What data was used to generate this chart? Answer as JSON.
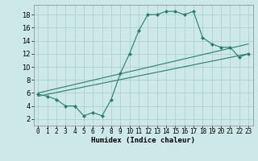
{
  "curve_x": [
    0,
    1,
    2,
    3,
    4,
    5,
    6,
    7,
    8,
    9,
    10,
    11,
    12,
    13,
    14,
    15,
    16,
    17,
    18,
    19,
    20,
    21,
    22,
    23
  ],
  "curve_y": [
    5.8,
    5.5,
    5.0,
    4.0,
    4.0,
    2.5,
    3.0,
    2.5,
    5.0,
    9.0,
    12.0,
    15.5,
    18.0,
    18.0,
    18.5,
    18.5,
    18.0,
    18.5,
    14.5,
    13.5,
    13.0,
    13.0,
    11.5,
    12.0
  ],
  "line1_x": [
    0,
    23
  ],
  "line1_y": [
    6.0,
    13.5
  ],
  "line2_x": [
    0,
    23
  ],
  "line2_y": [
    5.5,
    12.0
  ],
  "color": "#2a7d6e",
  "bg_color": "#cce8e8",
  "grid_color": "#aacccc",
  "xlim": [
    -0.5,
    23.5
  ],
  "ylim": [
    1.0,
    19.5
  ],
  "xlabel": "Humidex (Indice chaleur)",
  "xticks": [
    0,
    1,
    2,
    3,
    4,
    5,
    6,
    7,
    8,
    9,
    10,
    11,
    12,
    13,
    14,
    15,
    16,
    17,
    18,
    19,
    20,
    21,
    22,
    23
  ],
  "yticks": [
    2,
    4,
    6,
    8,
    10,
    12,
    14,
    16,
    18
  ],
  "xlabel_fontsize": 6.5,
  "tick_fontsize": 5.5,
  "ylabel_tick_fontsize": 6
}
